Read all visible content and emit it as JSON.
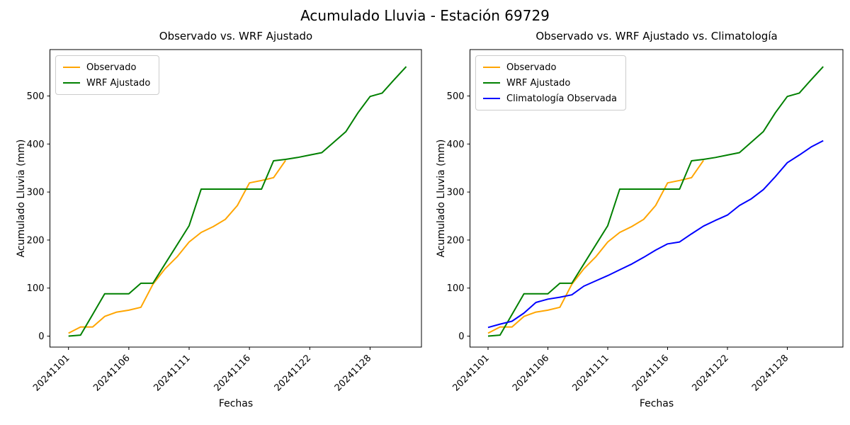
{
  "figure": {
    "title": "Acumulado Lluvia - Estación 69729"
  },
  "chart_data": [
    {
      "type": "line",
      "title": "Observado vs. WRF Ajustado",
      "xlabel": "Fechas",
      "ylabel": "Acumulado Lluvia (mm)",
      "x_ticklabels": [
        "20241101",
        "20241106",
        "20241111",
        "20241116",
        "20241122",
        "20241128"
      ],
      "x_tick_indices": [
        0,
        5,
        10,
        15,
        20,
        25
      ],
      "y_ticks": [
        0,
        100,
        200,
        300,
        400,
        500
      ],
      "ylim": [
        -25,
        590
      ],
      "n_points": 29,
      "grid": false,
      "legend_position": "upper left",
      "series": [
        {
          "name": "Observado",
          "color": "#FFA500",
          "values": [
            6,
            19,
            19,
            41,
            50,
            54,
            60,
            108,
            140,
            165,
            196,
            216,
            228,
            243,
            272,
            319,
            324,
            330,
            366
          ]
        },
        {
          "name": "WRF Ajustado",
          "color": "#008000",
          "values": [
            0,
            2,
            45,
            88,
            88,
            88,
            110,
            110,
            150,
            190,
            230,
            306,
            306,
            306,
            306,
            306,
            306,
            365,
            368,
            372,
            377,
            382,
            404,
            426,
            465,
            499,
            506,
            534,
            561
          ]
        }
      ]
    },
    {
      "type": "line",
      "title": "Observado vs. WRF Ajustado vs. Climatología",
      "xlabel": "Fechas",
      "ylabel": "Acumulado Lluvia (mm)",
      "x_ticklabels": [
        "20241101",
        "20241106",
        "20241111",
        "20241116",
        "20241122",
        "20241128"
      ],
      "x_tick_indices": [
        0,
        5,
        10,
        15,
        20,
        25
      ],
      "y_ticks": [
        0,
        100,
        200,
        300,
        400,
        500
      ],
      "ylim": [
        -25,
        590
      ],
      "n_points": 29,
      "grid": false,
      "legend_position": "upper left",
      "series": [
        {
          "name": "Observado",
          "color": "#FFA500",
          "values": [
            6,
            19,
            19,
            41,
            50,
            54,
            60,
            108,
            140,
            165,
            196,
            216,
            228,
            243,
            272,
            319,
            324,
            330,
            366
          ]
        },
        {
          "name": "WRF Ajustado",
          "color": "#008000",
          "values": [
            0,
            2,
            45,
            88,
            88,
            88,
            110,
            110,
            150,
            190,
            230,
            306,
            306,
            306,
            306,
            306,
            306,
            365,
            368,
            372,
            377,
            382,
            404,
            426,
            465,
            499,
            506,
            534,
            561
          ]
        },
        {
          "name": "Climatología Observada",
          "color": "#0000FF",
          "values": [
            18,
            25,
            31,
            48,
            70,
            77,
            81,
            86,
            104,
            115,
            126,
            138,
            150,
            164,
            179,
            192,
            196,
            213,
            229,
            241,
            252,
            272,
            286,
            305,
            332,
            361,
            377,
            394,
            407
          ]
        }
      ]
    }
  ]
}
